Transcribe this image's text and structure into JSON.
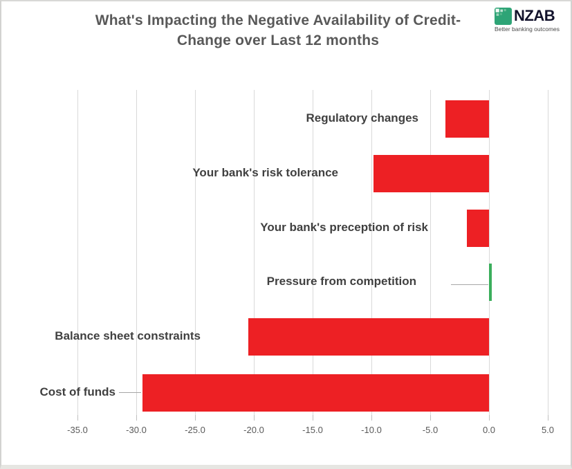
{
  "title": {
    "line1": "What's Impacting the Negative Availability of Credit-",
    "line2": "Change over Last 12 months"
  },
  "logo": {
    "name": "NZAB",
    "tagline": "Better banking outcomes",
    "icon": "pixel-mosaic-square",
    "icon_color": "#2EA476"
  },
  "chart_data": {
    "type": "bar",
    "orientation": "horizontal",
    "title": "What's Impacting the Negative Availability of Credit- Change over Last 12 months",
    "categories": [
      "Regulatory changes",
      "Your bank's risk tolerance",
      "Your bank's preception of risk",
      "Pressure from competition",
      "Balance sheet constraints",
      "Cost of funds"
    ],
    "values": [
      -3.7,
      -9.8,
      -1.9,
      0.2,
      -20.5,
      -29.5
    ],
    "xlabel": "",
    "ylabel": "",
    "xlim": [
      -35,
      5
    ],
    "xticks": [
      -35,
      -30,
      -25,
      -20,
      -15,
      -10,
      -5,
      0,
      5
    ],
    "xtick_labels": [
      "-35.0",
      "-30.0",
      "-25.0",
      "-20.0",
      "-15.0",
      "-10.0",
      "-5.0",
      "0.0",
      "5.0"
    ],
    "grid": true,
    "legend": false,
    "colors": {
      "negative_bar": "#ED2024",
      "positive_bar": "#3BAE5C",
      "gridline": "#D9D9D9",
      "tick": "#BFBFBF",
      "axis_text": "#595959",
      "category_text": "#404040",
      "title_text": "#595959",
      "leader_line": "#A6A6A6"
    }
  }
}
